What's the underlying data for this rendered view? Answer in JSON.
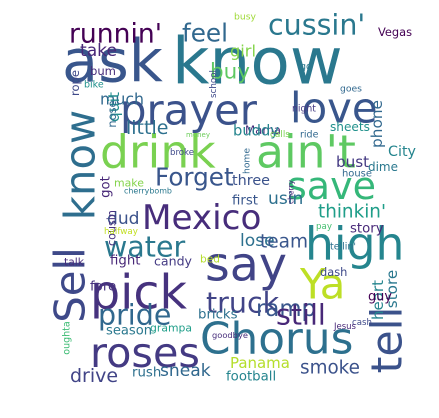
{
  "words": [
    {
      "text": "ask",
      "color": "#39568c"
    },
    {
      "text": "know",
      "color": "#2a788e"
    },
    {
      "text": "prayer",
      "color": "#3b528b"
    },
    {
      "text": "love",
      "color": "#39568c"
    },
    {
      "text": "drink",
      "color": "#7ad151"
    },
    {
      "text": "ain't",
      "color": "#5ec962"
    },
    {
      "text": "save",
      "color": "#35b779"
    },
    {
      "text": "Mexico",
      "color": "#472d7b"
    },
    {
      "text": "say",
      "color": "#414487"
    },
    {
      "text": "high",
      "color": "#25858e"
    },
    {
      "text": "pick",
      "color": "#46327e"
    },
    {
      "text": "Ya",
      "color": "#bddf26"
    },
    {
      "text": "Chorus",
      "color": "#2d708e"
    },
    {
      "text": "roses",
      "color": "#443a83"
    },
    {
      "text": "tell",
      "color": "#3b528b"
    },
    {
      "text": "Sell",
      "color": "#3e4989"
    },
    {
      "text": "know",
      "color": "#2e6e8e"
    },
    {
      "text": "cussin'",
      "color": "#2a788e"
    },
    {
      "text": "runnin'",
      "color": "#440154"
    },
    {
      "text": "feel",
      "color": "#31688e"
    },
    {
      "text": "buy",
      "color": "#5ec962"
    },
    {
      "text": "girl",
      "color": "#84d44b"
    },
    {
      "text": "Vegas",
      "color": "#440154"
    },
    {
      "text": "take",
      "color": "#482878"
    },
    {
      "text": "rope",
      "color": "#3e4989"
    },
    {
      "text": "bum",
      "color": "#472d7b"
    },
    {
      "text": "much",
      "color": "#31688e"
    },
    {
      "text": "quit",
      "color": "#228c8d"
    },
    {
      "text": "nose",
      "color": "#31688e"
    },
    {
      "text": "Forget",
      "color": "#39568c"
    },
    {
      "text": "little",
      "color": "#2d708e"
    },
    {
      "text": "Mama",
      "color": "#472d7b"
    },
    {
      "text": "buddy",
      "color": "#25858e"
    },
    {
      "text": "sheets",
      "color": "#21918c"
    },
    {
      "text": "phone",
      "color": "#31688e"
    },
    {
      "text": "got",
      "color": "#482878"
    },
    {
      "text": "three",
      "color": "#3b528b"
    },
    {
      "text": "usin",
      "color": "#2d708e"
    },
    {
      "text": "first",
      "color": "#39568c"
    },
    {
      "text": "bust",
      "color": "#443a83"
    },
    {
      "text": "dime",
      "color": "#2a788e"
    },
    {
      "text": "City",
      "color": "#25858e"
    },
    {
      "text": "thinkin'",
      "color": "#1f9e89"
    },
    {
      "text": "story",
      "color": "#482878"
    },
    {
      "text": "water",
      "color": "#2a788e"
    },
    {
      "text": "dud",
      "color": "#3b528b"
    },
    {
      "text": "cousin",
      "color": "#46327e"
    },
    {
      "text": "lose",
      "color": "#2d708e"
    },
    {
      "text": "team",
      "color": "#39568c"
    },
    {
      "text": "fight",
      "color": "#482878"
    },
    {
      "text": "candy",
      "color": "#443a83"
    },
    {
      "text": "bed",
      "color": "#b5de2b"
    },
    {
      "text": "talk",
      "color": "#472d7b"
    },
    {
      "text": "fore",
      "color": "#46327e"
    },
    {
      "text": "truck",
      "color": "#414487"
    },
    {
      "text": "ramp",
      "color": "#39568c"
    },
    {
      "text": "still",
      "color": "#482878"
    },
    {
      "text": "dash",
      "color": "#3e4989"
    },
    {
      "text": "heart",
      "color": "#25858e"
    },
    {
      "text": "store",
      "color": "#2a788e"
    },
    {
      "text": "guy",
      "color": "#440154"
    },
    {
      "text": "pride",
      "color": "#31688e"
    },
    {
      "text": "season",
      "color": "#2a788e"
    },
    {
      "text": "grampa",
      "color": "#1f9e89"
    },
    {
      "text": "bricks",
      "color": "#2d708e"
    },
    {
      "text": "Panama",
      "color": "#b5de2b"
    },
    {
      "text": "smoke",
      "color": "#3b528b"
    },
    {
      "text": "drive",
      "color": "#414487"
    },
    {
      "text": "rush",
      "color": "#2d708e"
    },
    {
      "text": "sneak",
      "color": "#31688e"
    },
    {
      "text": "football",
      "color": "#25858e"
    },
    {
      "text": "oughta",
      "color": "#3dbc74"
    },
    {
      "text": "busy",
      "color": "#a0da39"
    },
    {
      "text": "school",
      "color": "#3e4989"
    },
    {
      "text": "go",
      "color": "#2a788e"
    },
    {
      "text": "goes",
      "color": "#31688e"
    },
    {
      "text": "night",
      "color": "#443a83"
    },
    {
      "text": "ride",
      "color": "#31688e"
    },
    {
      "text": "calls",
      "color": "#7ad151"
    },
    {
      "text": "money",
      "color": "#6ccd5a"
    },
    {
      "text": "home",
      "color": "#31688e"
    },
    {
      "text": "broke",
      "color": "#3e4989"
    },
    {
      "text": "house",
      "color": "#31688e"
    },
    {
      "text": "cash",
      "color": "#3e4989"
    },
    {
      "text": "make",
      "color": "#84d44b"
    },
    {
      "text": "cherrybomb",
      "color": "#2a788e"
    },
    {
      "text": "halfway",
      "color": "#c2df23"
    },
    {
      "text": "pay",
      "color": "#44bf70"
    },
    {
      "text": "tellin'",
      "color": "#2d708e"
    },
    {
      "text": "goodbye",
      "color": "#472d7b"
    },
    {
      "text": "Jesus",
      "color": "#482878"
    },
    {
      "text": "bike",
      "color": "#21918c"
    },
    {
      "text": "cherry",
      "color": "#482878"
    }
  ]
}
